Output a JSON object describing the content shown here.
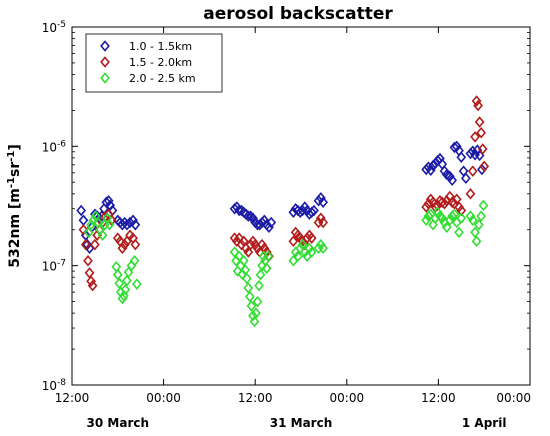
{
  "chart_data": {
    "type": "scatter",
    "title": "aerosol backscatter",
    "ylabel": {
      "base": "532nm [m",
      "exp1": "-1",
      "mid": "sr",
      "exp2": "-1",
      "end": "]"
    },
    "xlabel": "",
    "yscale": "log",
    "ylim": [
      1e-08,
      1e-05
    ],
    "y_ticks": [
      {
        "value": 1e-08,
        "base": "10",
        "exp": "-8"
      },
      {
        "value": 1e-07,
        "base": "10",
        "exp": "-7"
      },
      {
        "value": 1e-06,
        "base": "10",
        "exp": "-6"
      },
      {
        "value": 1e-05,
        "base": "10",
        "exp": "-5"
      }
    ],
    "x_unit": "hours from 30 March 12:00",
    "xlim": [
      0,
      60
    ],
    "x_ticks": [
      {
        "value": 0,
        "label": "12:00"
      },
      {
        "value": 12,
        "label": "00:00"
      },
      {
        "value": 24,
        "label": "12:00"
      },
      {
        "value": 36,
        "label": "00:00"
      },
      {
        "value": 48,
        "label": "12:00"
      },
      {
        "value": 60,
        "label": "00:00"
      }
    ],
    "day_labels": [
      {
        "value": 6,
        "label": "30 March"
      },
      {
        "value": 30,
        "label": "31 March"
      },
      {
        "value": 54,
        "label": "1 April"
      }
    ],
    "marker": "diamond-open",
    "legend_position": "top-left",
    "grid": false,
    "series": [
      {
        "name": "1.0 - 1.5km",
        "color": "#1a1aa6",
        "points": [
          [
            1.2,
            2.9e-07
          ],
          [
            1.5,
            2.4e-07
          ],
          [
            1.8,
            1.8e-07
          ],
          [
            2.0,
            1.5e-07
          ],
          [
            2.3,
            1.4e-07
          ],
          [
            2.6,
            2.1e-07
          ],
          [
            3.0,
            2.7e-07
          ],
          [
            3.3,
            2.6e-07
          ],
          [
            3.6,
            2.5e-07
          ],
          [
            3.9,
            2.6e-07
          ],
          [
            4.2,
            3e-07
          ],
          [
            4.5,
            3.4e-07
          ],
          [
            4.8,
            3.5e-07
          ],
          [
            5.0,
            3.2e-07
          ],
          [
            5.3,
            2.9e-07
          ],
          [
            6.0,
            2.4e-07
          ],
          [
            6.3,
            2.3e-07
          ],
          [
            6.6,
            2.2e-07
          ],
          [
            6.9,
            2.3e-07
          ],
          [
            7.2,
            2.2e-07
          ],
          [
            7.6,
            2.3e-07
          ],
          [
            8.0,
            2.4e-07
          ],
          [
            8.3,
            2.2e-07
          ],
          [
            21.3,
            3e-07
          ],
          [
            21.6,
            3.1e-07
          ],
          [
            21.9,
            2.9e-07
          ],
          [
            22.2,
            2.9e-07
          ],
          [
            22.5,
            2.8e-07
          ],
          [
            22.8,
            2.7e-07
          ],
          [
            23.1,
            2.6e-07
          ],
          [
            23.4,
            2.6e-07
          ],
          [
            23.7,
            2.5e-07
          ],
          [
            24.0,
            2.3e-07
          ],
          [
            24.3,
            2.2e-07
          ],
          [
            24.6,
            2.2e-07
          ],
          [
            24.9,
            2.3e-07
          ],
          [
            25.2,
            2.4e-07
          ],
          [
            25.5,
            2.2e-07
          ],
          [
            25.8,
            2.1e-07
          ],
          [
            26.1,
            2.3e-07
          ],
          [
            29.0,
            2.8e-07
          ],
          [
            29.3,
            3e-07
          ],
          [
            29.6,
            2.9e-07
          ],
          [
            29.9,
            2.8e-07
          ],
          [
            30.2,
            2.9e-07
          ],
          [
            30.5,
            3.1e-07
          ],
          [
            30.8,
            2.9e-07
          ],
          [
            31.1,
            2.7e-07
          ],
          [
            31.4,
            2.8e-07
          ],
          [
            31.7,
            2.9e-07
          ],
          [
            32.3,
            3.5e-07
          ],
          [
            32.6,
            3.7e-07
          ],
          [
            32.9,
            3.4e-07
          ],
          [
            46.4,
            6.4e-07
          ],
          [
            46.7,
            6.7e-07
          ],
          [
            47.0,
            6.3e-07
          ],
          [
            47.3,
            6.9e-07
          ],
          [
            47.6,
            7.2e-07
          ],
          [
            47.9,
            7.6e-07
          ],
          [
            48.2,
            7.9e-07
          ],
          [
            48.5,
            7.1e-07
          ],
          [
            48.8,
            6.2e-07
          ],
          [
            49.1,
            5.8e-07
          ],
          [
            49.5,
            5.6e-07
          ],
          [
            49.8,
            5.2e-07
          ],
          [
            50.1,
            9.8e-07
          ],
          [
            50.4,
            1e-06
          ],
          [
            50.7,
            9.2e-07
          ],
          [
            51.0,
            8.1e-07
          ],
          [
            51.3,
            6.2e-07
          ],
          [
            51.6,
            5.4e-07
          ],
          [
            52.2,
            8.7e-07
          ],
          [
            52.5,
            9.1e-07
          ],
          [
            52.8,
            8.5e-07
          ],
          [
            53.1,
            9.3e-07
          ],
          [
            53.4,
            8.4e-07
          ],
          [
            53.7,
            6.4e-07
          ]
        ]
      },
      {
        "name": "1.5 - 2.0km",
        "color": "#b31a1a",
        "points": [
          [
            1.5,
            2e-07
          ],
          [
            1.8,
            1.5e-07
          ],
          [
            2.1,
            1.1e-07
          ],
          [
            2.3,
            8.7e-08
          ],
          [
            2.5,
            7.4e-08
          ],
          [
            2.7,
            6.8e-08
          ],
          [
            3.0,
            1.5e-07
          ],
          [
            3.3,
            1.8e-07
          ],
          [
            3.6,
            2e-07
          ],
          [
            4.0,
            2.3e-07
          ],
          [
            4.4,
            2.6e-07
          ],
          [
            4.8,
            2.7e-07
          ],
          [
            5.2,
            2.4e-07
          ],
          [
            6.0,
            1.7e-07
          ],
          [
            6.3,
            1.6e-07
          ],
          [
            6.6,
            1.4e-07
          ],
          [
            6.9,
            1.5e-07
          ],
          [
            7.2,
            1.6e-07
          ],
          [
            7.6,
            1.8e-07
          ],
          [
            8.0,
            1.7e-07
          ],
          [
            8.3,
            1.5e-07
          ],
          [
            21.3,
            1.7e-07
          ],
          [
            21.6,
            1.6e-07
          ],
          [
            21.9,
            1.7e-07
          ],
          [
            22.2,
            1.5e-07
          ],
          [
            22.5,
            1.6e-07
          ],
          [
            22.8,
            1.4e-07
          ],
          [
            23.1,
            1.3e-07
          ],
          [
            23.4,
            1.5e-07
          ],
          [
            23.7,
            1.6e-07
          ],
          [
            24.0,
            1.5e-07
          ],
          [
            24.3,
            1.4e-07
          ],
          [
            24.6,
            1.3e-07
          ],
          [
            24.9,
            1.5e-07
          ],
          [
            25.2,
            1.4e-07
          ],
          [
            25.5,
            1.3e-07
          ],
          [
            25.8,
            1.2e-07
          ],
          [
            29.0,
            1.6e-07
          ],
          [
            29.3,
            1.9e-07
          ],
          [
            29.6,
            1.8e-07
          ],
          [
            29.9,
            1.7e-07
          ],
          [
            30.2,
            1.6e-07
          ],
          [
            30.5,
            1.5e-07
          ],
          [
            30.8,
            1.7e-07
          ],
          [
            31.1,
            1.8e-07
          ],
          [
            31.4,
            1.7e-07
          ],
          [
            32.3,
            2.3e-07
          ],
          [
            32.6,
            2.5e-07
          ],
          [
            32.9,
            2.3e-07
          ],
          [
            46.4,
            3.1e-07
          ],
          [
            46.7,
            3.3e-07
          ],
          [
            47.0,
            3.6e-07
          ],
          [
            47.3,
            3.4e-07
          ],
          [
            47.6,
            3.1e-07
          ],
          [
            47.9,
            3.2e-07
          ],
          [
            48.2,
            3.5e-07
          ],
          [
            48.5,
            3.4e-07
          ],
          [
            48.8,
            3.3e-07
          ],
          [
            49.1,
            3.5e-07
          ],
          [
            49.5,
            3.8e-07
          ],
          [
            49.8,
            3.4e-07
          ],
          [
            50.1,
            3.3e-07
          ],
          [
            50.4,
            3.6e-07
          ],
          [
            50.7,
            3.1e-07
          ],
          [
            51.0,
            2.9e-07
          ],
          [
            52.2,
            4e-07
          ],
          [
            52.5,
            6.2e-07
          ],
          [
            52.8,
            1.2e-06
          ],
          [
            53.0,
            2.4e-06
          ],
          [
            53.2,
            2.2e-06
          ],
          [
            53.4,
            1.6e-06
          ],
          [
            53.6,
            1.3e-06
          ],
          [
            53.8,
            9.5e-07
          ],
          [
            54.0,
            6.8e-07
          ]
        ]
      },
      {
        "name": "2.0 - 2.5 km",
        "color": "#33dd33",
        "points": [
          [
            2.2,
            1.9e-07
          ],
          [
            2.5,
            2.2e-07
          ],
          [
            2.8,
            2.4e-07
          ],
          [
            3.1,
            2.6e-07
          ],
          [
            3.4,
            2.3e-07
          ],
          [
            3.7,
            2e-07
          ],
          [
            4.0,
            1.8e-07
          ],
          [
            4.3,
            2.2e-07
          ],
          [
            4.6,
            2.5e-07
          ],
          [
            4.9,
            2.2e-07
          ],
          [
            5.8,
            9.8e-08
          ],
          [
            6.0,
            8.4e-08
          ],
          [
            6.2,
            7.1e-08
          ],
          [
            6.4,
            6e-08
          ],
          [
            6.6,
            5.3e-08
          ],
          [
            6.8,
            5.6e-08
          ],
          [
            7.0,
            6.3e-08
          ],
          [
            7.2,
            7.5e-08
          ],
          [
            7.4,
            8.8e-08
          ],
          [
            7.8,
            1e-07
          ],
          [
            8.2,
            1.1e-07
          ],
          [
            8.5,
            7e-08
          ],
          [
            21.3,
            1.3e-07
          ],
          [
            21.5,
            1.1e-07
          ],
          [
            21.7,
            9e-08
          ],
          [
            21.9,
            1.2e-07
          ],
          [
            22.1,
            1e-07
          ],
          [
            22.3,
            8.5e-08
          ],
          [
            22.5,
            1.1e-07
          ],
          [
            22.7,
            9.2e-08
          ],
          [
            22.9,
            7.8e-08
          ],
          [
            23.1,
            6.5e-08
          ],
          [
            23.3,
            5.5e-08
          ],
          [
            23.5,
            4.6e-08
          ],
          [
            23.7,
            3.8e-08
          ],
          [
            23.9,
            3.4e-08
          ],
          [
            24.1,
            4e-08
          ],
          [
            24.3,
            5e-08
          ],
          [
            24.5,
            6.8e-08
          ],
          [
            24.7,
            8.4e-08
          ],
          [
            24.9,
            1e-07
          ],
          [
            25.1,
            1.2e-07
          ],
          [
            25.3,
            1.1e-07
          ],
          [
            25.5,
            9.5e-08
          ],
          [
            25.7,
            1.2e-07
          ],
          [
            29.0,
            1.1e-07
          ],
          [
            29.3,
            1.3e-07
          ],
          [
            29.6,
            1.2e-07
          ],
          [
            29.9,
            1.4e-07
          ],
          [
            30.2,
            1.5e-07
          ],
          [
            30.5,
            1.3e-07
          ],
          [
            30.8,
            1.2e-07
          ],
          [
            31.1,
            1.4e-07
          ],
          [
            31.4,
            1.3e-07
          ],
          [
            32.3,
            1.4e-07
          ],
          [
            32.6,
            1.5e-07
          ],
          [
            32.9,
            1.4e-07
          ],
          [
            46.4,
            2.4e-07
          ],
          [
            46.7,
            2.6e-07
          ],
          [
            47.0,
            2.7e-07
          ],
          [
            47.3,
            2.2e-07
          ],
          [
            47.6,
            2.5e-07
          ],
          [
            47.9,
            2.8e-07
          ],
          [
            48.2,
            2.6e-07
          ],
          [
            48.5,
            2.5e-07
          ],
          [
            48.8,
            2.3e-07
          ],
          [
            49.1,
            2.1e-07
          ],
          [
            49.5,
            2.4e-07
          ],
          [
            49.8,
            2.6e-07
          ],
          [
            50.1,
            2.7e-07
          ],
          [
            50.4,
            2.3e-07
          ],
          [
            50.7,
            1.9e-07
          ],
          [
            51.0,
            2.5e-07
          ],
          [
            52.2,
            2.6e-07
          ],
          [
            52.5,
            2.4e-07
          ],
          [
            52.8,
            1.9e-07
          ],
          [
            53.0,
            1.6e-07
          ],
          [
            53.3,
            2.2e-07
          ],
          [
            53.6,
            2.6e-07
          ],
          [
            53.9,
            3.2e-07
          ]
        ]
      }
    ]
  }
}
